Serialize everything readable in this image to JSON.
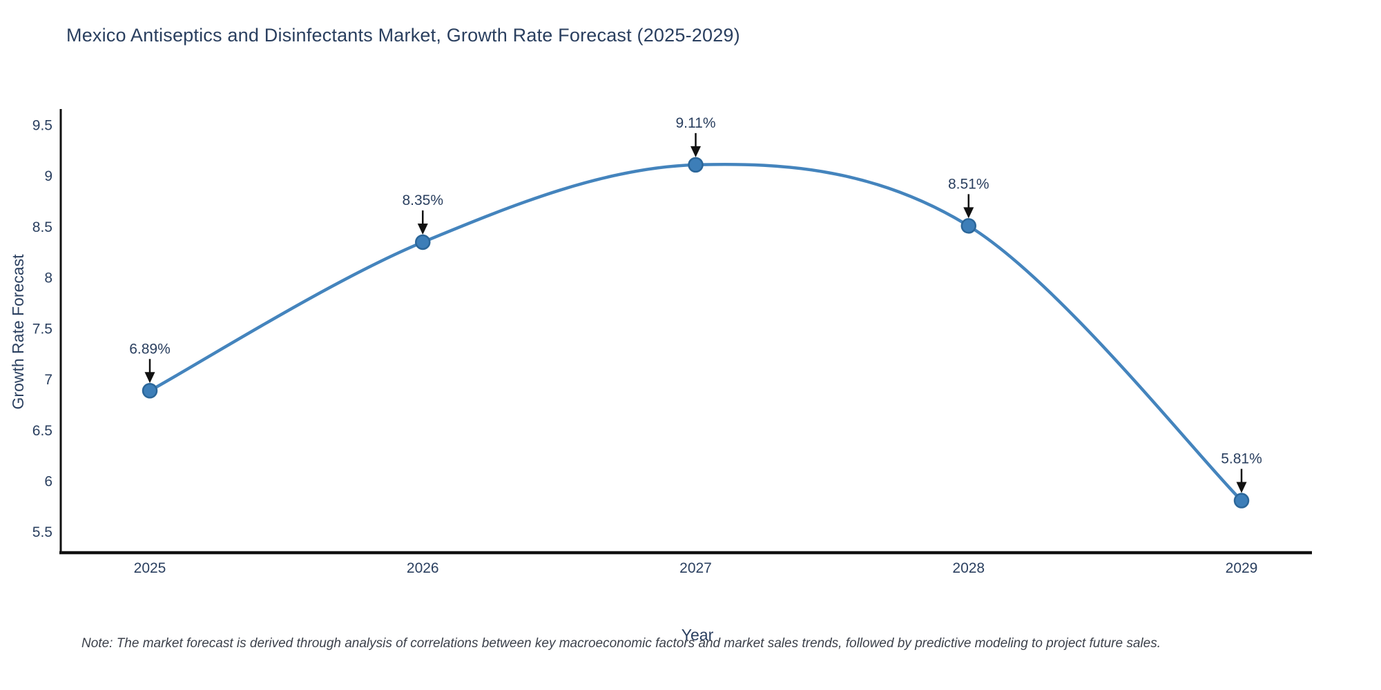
{
  "chart_data": {
    "type": "line",
    "title": "Mexico Antiseptics and Disinfectants Market, Growth Rate Forecast (2025-2029)",
    "xlabel": "Year",
    "ylabel": "Growth Rate Forecast",
    "x": [
      2025,
      2026,
      2027,
      2028,
      2029
    ],
    "xtick_labels": [
      "2025",
      "2026",
      "2027",
      "2028",
      "2029"
    ],
    "series": [
      {
        "name": "Growth Rate Forecast",
        "values": [
          6.89,
          8.35,
          9.11,
          8.51,
          5.81
        ],
        "point_labels": [
          "6.89%",
          "8.35%",
          "9.11%",
          "8.51%",
          "5.81%"
        ]
      }
    ],
    "yticks": [
      5.5,
      6,
      6.5,
      7,
      7.5,
      8,
      8.5,
      9,
      9.5
    ],
    "ylim": [
      5.3,
      9.65
    ],
    "grid": false,
    "legend_position": "none",
    "line_shape": "spline",
    "colors": {
      "line": "#4484bd",
      "marker_fill": "#3d7eb8",
      "marker_edge": "#2b6699",
      "axis": "#111111",
      "text": "#2a3f5f",
      "annotation_arrow": "#111111"
    }
  },
  "note": "Note: The market forecast is derived through analysis of correlations between key macroeconomic factors and market sales trends, followed by predictive modeling to project future sales."
}
